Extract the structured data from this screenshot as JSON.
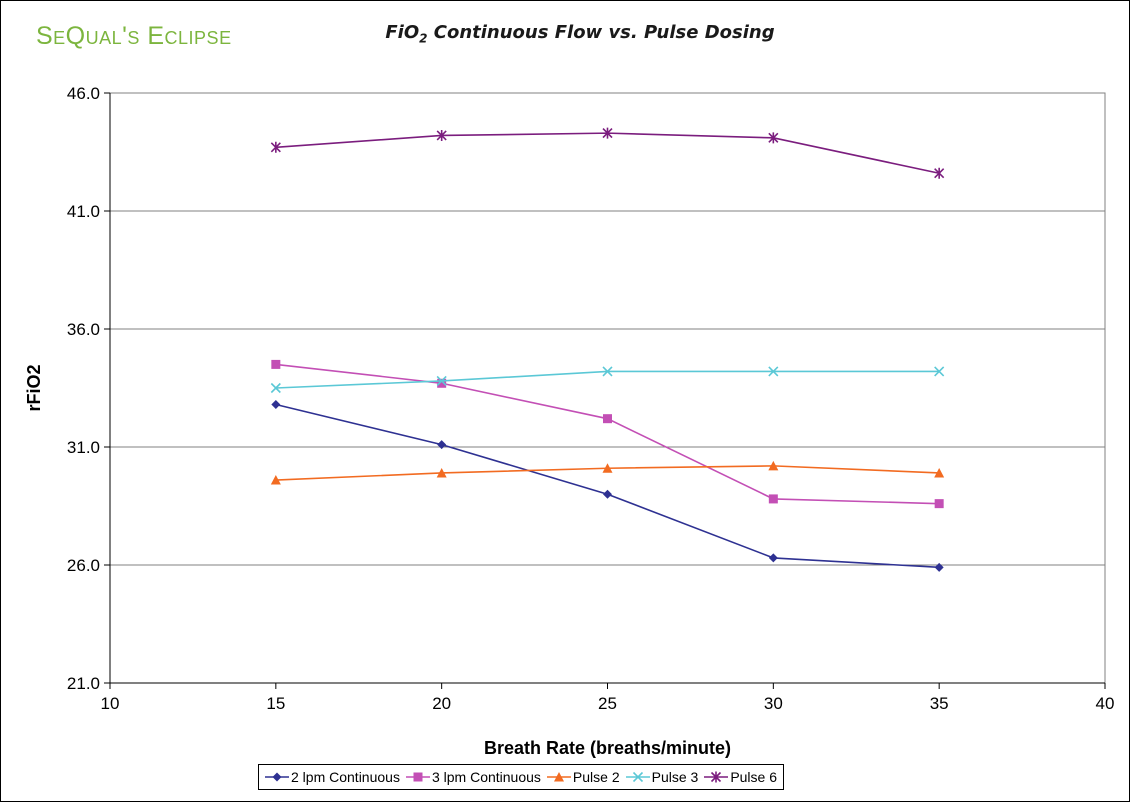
{
  "brand": "SeQual's Eclipse",
  "chart_data": {
    "type": "line",
    "title_main": "FiO",
    "title_sub": "2",
    "title_rest": " Continuous Flow vs. Pulse Dosing",
    "xlabel": "Breath Rate (breaths/minute)",
    "ylabel": "rFiO2",
    "xlim": [
      10,
      40
    ],
    "ylim": [
      21.0,
      46.0
    ],
    "xticks": [
      10,
      15,
      20,
      25,
      30,
      35,
      40
    ],
    "yticks": [
      21.0,
      26.0,
      31.0,
      36.0,
      41.0,
      46.0
    ],
    "ytick_labels": [
      "21.0",
      "26.0",
      "31.0",
      "36.0",
      "41.0",
      "46.0"
    ],
    "grid": "horizontal",
    "legend_position": "bottom",
    "x": [
      15,
      20,
      25,
      30,
      35
    ],
    "series": [
      {
        "name": "2 lpm Continuous",
        "values": [
          32.8,
          31.1,
          29.0,
          26.3,
          25.9
        ],
        "color": "#2e3192",
        "marker": "diamond"
      },
      {
        "name": "3 lpm Continuous",
        "values": [
          34.5,
          33.7,
          32.2,
          28.8,
          28.6
        ],
        "color": "#c34fb5",
        "marker": "square"
      },
      {
        "name": "Pulse 2",
        "values": [
          29.6,
          29.9,
          30.1,
          30.2,
          29.9
        ],
        "color": "#f26b21",
        "marker": "triangle"
      },
      {
        "name": "Pulse 3",
        "values": [
          33.5,
          33.8,
          34.2,
          34.2,
          34.2
        ],
        "color": "#5bc8d6",
        "marker": "x"
      },
      {
        "name": "Pulse 6",
        "values": [
          43.7,
          44.2,
          44.3,
          44.1,
          42.6
        ],
        "color": "#7b1d7e",
        "marker": "star"
      }
    ]
  }
}
